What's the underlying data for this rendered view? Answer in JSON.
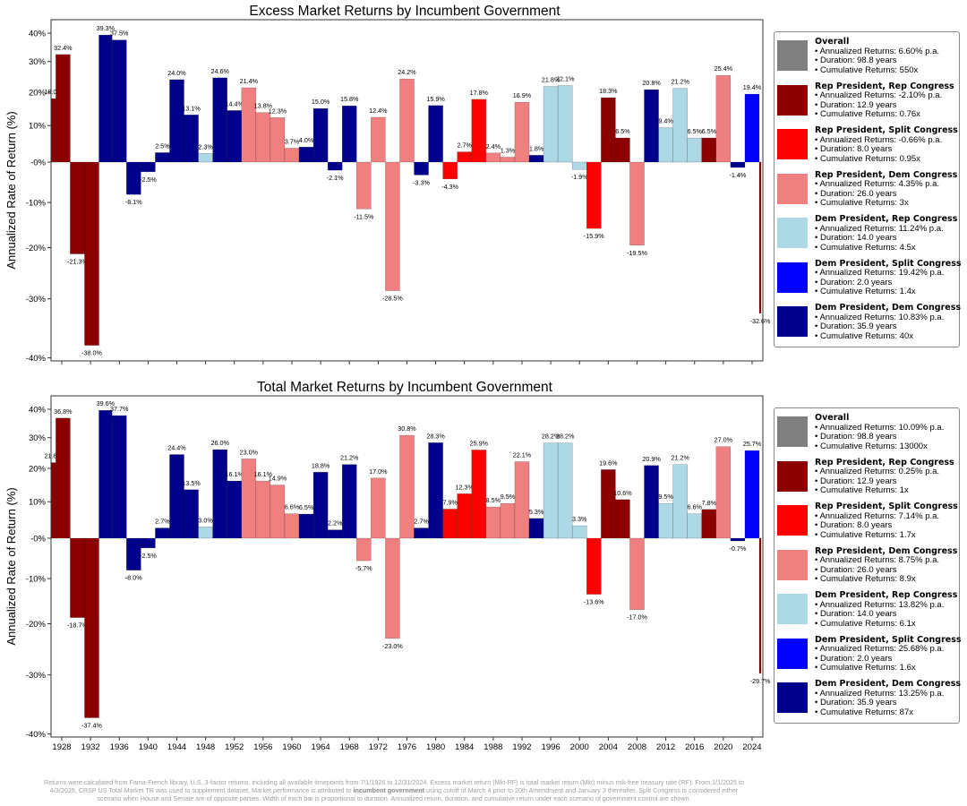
{
  "colors": {
    "overall": "#808080",
    "RR": "#8b0000",
    "RS": "#ff0000",
    "RD": "#f08080",
    "DR": "#add8e6",
    "DS": "#0000ff",
    "DD": "#00008b"
  },
  "chart_data": [
    {
      "type": "bar",
      "title": "Excess Market Returns by Incumbent Government",
      "xlabel": "",
      "ylabel": "Annualized Rate of Return (%)",
      "y_scale": "log(1+r)",
      "ylim": [
        -40,
        45
      ],
      "y_ticks": [
        "40%",
        "30%",
        "20%",
        "10%",
        "-0%",
        "-10%",
        "-20%",
        "-30%",
        "-40%"
      ],
      "y_tick_values": [
        40,
        30,
        20,
        10,
        0,
        -10,
        -20,
        -30,
        -40
      ],
      "x_ticks_shown": false,
      "period_boundaries": [
        1926.5,
        1927.17,
        1929.17,
        1931.17,
        1933.17,
        1935,
        1937,
        1939,
        1941,
        1943,
        1945,
        1947,
        1949,
        1951,
        1953,
        1955,
        1957,
        1959,
        1961,
        1963,
        1965,
        1967,
        1969,
        1971,
        1973,
        1975,
        1977,
        1979,
        1981,
        1983,
        1985,
        1987,
        1989,
        1991,
        1993,
        1995,
        1997,
        1999,
        2001,
        2003,
        2005,
        2007,
        2009,
        2011,
        2013,
        2015,
        2017,
        2019,
        2021,
        2023,
        2025,
        2025.25
      ],
      "groups": [
        "RR",
        "RR",
        "RR",
        "RR",
        "DD",
        "DD",
        "DD",
        "DD",
        "DD",
        "DD",
        "DD",
        "DR",
        "DD",
        "DD",
        "RD",
        "RD",
        "RD",
        "RD",
        "DD",
        "DD",
        "DD",
        "DD",
        "RD",
        "RD",
        "RD",
        "RD",
        "DD",
        "DD",
        "RS",
        "RS",
        "RS",
        "RD",
        "RD",
        "RD",
        "DD",
        "DR",
        "DR",
        "DR",
        "RS",
        "RR",
        "RR",
        "RD",
        "DD",
        "DR",
        "DR",
        "DR",
        "RR",
        "RD",
        "DD",
        "DS",
        "RR"
      ],
      "values": [
        18.0,
        32.4,
        -21.3,
        -38.0,
        39.3,
        37.5,
        -8.1,
        -2.5,
        2.5,
        24.0,
        13.1,
        2.3,
        24.6,
        14.4,
        21.4,
        13.8,
        12.3,
        3.7,
        4.0,
        15.0,
        -2.1,
        15.8,
        -11.5,
        12.4,
        -28.5,
        24.2,
        -3.3,
        15.9,
        -4.3,
        2.7,
        17.8,
        2.4,
        1.3,
        16.9,
        1.8,
        21.8,
        22.1,
        -1.9,
        -15.9,
        18.3,
        6.5,
        -19.5,
        20.8,
        9.4,
        21.2,
        6.5,
        6.5,
        25.4,
        -1.4,
        19.4,
        -32.6
      ],
      "legend_placement": "right",
      "legend": [
        {
          "group": "overall",
          "title": "Overall",
          "lines": [
            "• Annualized Returns: 6.60% p.a.",
            "• Duration: 98.8 years",
            "• Cumulative Returns: 550x"
          ]
        },
        {
          "group": "RR",
          "title": "Rep President,  Rep Congress",
          "lines": [
            "• Annualized Returns: -2.10% p.a.",
            "• Duration: 12.9 years",
            "• Cumulative Returns: 0.76x"
          ]
        },
        {
          "group": "RS",
          "title": "Rep President,  Split Congress",
          "lines": [
            "• Annualized Returns: -0.66% p.a.",
            "• Duration: 8.0 years",
            "• Cumulative Returns: 0.95x"
          ]
        },
        {
          "group": "RD",
          "title": "Rep President,  Dem Congress",
          "lines": [
            "• Annualized Returns: 4.35% p.a.",
            "• Duration: 26.0 years",
            "• Cumulative Returns: 3x"
          ]
        },
        {
          "group": "DR",
          "title": "Dem President,  Rep Congress",
          "lines": [
            "• Annualized Returns: 11.24% p.a.",
            "• Duration: 14.0 years",
            "• Cumulative Returns: 4.5x"
          ]
        },
        {
          "group": "DS",
          "title": "Dem President,  Split Congress",
          "lines": [
            "• Annualized Returns: 19.42% p.a.",
            "• Duration: 2.0 years",
            "• Cumulative Returns: 1.4x"
          ]
        },
        {
          "group": "DD",
          "title": "Dem President,  Dem Congress",
          "lines": [
            "• Annualized Returns: 10.83% p.a.",
            "• Duration: 35.9 years",
            "• Cumulative Returns: 40x"
          ]
        }
      ]
    },
    {
      "type": "bar",
      "title": "Total Market Returns by Incumbent Government",
      "xlabel": "",
      "ylabel": "Annualized Rate of Return (%)",
      "y_scale": "log(1+r)",
      "ylim": [
        -40,
        45
      ],
      "y_ticks": [
        "40%",
        "30%",
        "20%",
        "10%",
        "-0%",
        "-10%",
        "-20%",
        "-30%",
        "-40%"
      ],
      "y_tick_values": [
        40,
        30,
        20,
        10,
        0,
        -10,
        -20,
        -30,
        -40
      ],
      "x_ticks_shown": true,
      "x_ticks": [
        "1928",
        "1932",
        "1936",
        "1940",
        "1944",
        "1948",
        "1952",
        "1956",
        "1960",
        "1964",
        "1968",
        "1972",
        "1976",
        "1980",
        "1984",
        "1988",
        "1992",
        "1996",
        "2000",
        "2004",
        "2008",
        "2012",
        "2016",
        "2020",
        "2024"
      ],
      "period_boundaries": [
        1926.5,
        1927.17,
        1929.17,
        1931.17,
        1933.17,
        1935,
        1937,
        1939,
        1941,
        1943,
        1945,
        1947,
        1949,
        1951,
        1953,
        1955,
        1957,
        1959,
        1961,
        1963,
        1965,
        1967,
        1969,
        1971,
        1973,
        1975,
        1977,
        1979,
        1981,
        1983,
        1985,
        1987,
        1989,
        1991,
        1993,
        1995,
        1997,
        1999,
        2001,
        2003,
        2005,
        2007,
        2009,
        2011,
        2013,
        2015,
        2017,
        2019,
        2021,
        2023,
        2025,
        2025.25
      ],
      "groups": [
        "RR",
        "RR",
        "RR",
        "RR",
        "DD",
        "DD",
        "DD",
        "DD",
        "DD",
        "DD",
        "DD",
        "DR",
        "DD",
        "DD",
        "RD",
        "RD",
        "RD",
        "RD",
        "DD",
        "DD",
        "DD",
        "DD",
        "RD",
        "RD",
        "RD",
        "RD",
        "DD",
        "DD",
        "RS",
        "RS",
        "RS",
        "RD",
        "RD",
        "RD",
        "DD",
        "DR",
        "DR",
        "DR",
        "RS",
        "RR",
        "RR",
        "RD",
        "DD",
        "DR",
        "DR",
        "DR",
        "RR",
        "RD",
        "DD",
        "DS",
        "RR"
      ],
      "values": [
        21.8,
        36.8,
        -18.7,
        -37.4,
        39.6,
        37.7,
        -8.0,
        -2.5,
        2.7,
        24.4,
        13.5,
        3.0,
        26.0,
        16.1,
        23.0,
        16.1,
        14.9,
        6.6,
        6.5,
        18.8,
        2.2,
        21.2,
        -5.7,
        17.0,
        -23.0,
        30.8,
        2.7,
        28.3,
        7.9,
        12.3,
        25.9,
        8.5,
        9.5,
        22.1,
        5.3,
        28.2,
        28.2,
        3.3,
        -13.6,
        19.6,
        10.6,
        -17.0,
        20.9,
        9.5,
        21.2,
        6.6,
        7.8,
        27.0,
        -0.7,
        25.7,
        -29.7
      ],
      "legend_placement": "right",
      "legend": [
        {
          "group": "overall",
          "title": "Overall",
          "lines": [
            "• Annualized Returns: 10.09% p.a.",
            "• Duration: 98.8 years",
            "• Cumulative Returns: 13000x"
          ]
        },
        {
          "group": "RR",
          "title": "Rep President,  Rep Congress",
          "lines": [
            "• Annualized Returns: 0.25% p.a.",
            "• Duration: 12.9 years",
            "• Cumulative Returns: 1x"
          ]
        },
        {
          "group": "RS",
          "title": "Rep President,  Split Congress",
          "lines": [
            "• Annualized Returns: 7.14% p.a.",
            "• Duration: 8.0 years",
            "• Cumulative Returns: 1.7x"
          ]
        },
        {
          "group": "RD",
          "title": "Rep President,  Dem Congress",
          "lines": [
            "• Annualized Returns: 8.75% p.a.",
            "• Duration: 26.0 years",
            "• Cumulative Returns: 8.9x"
          ]
        },
        {
          "group": "DR",
          "title": "Dem President,  Rep Congress",
          "lines": [
            "• Annualized Returns: 13.82% p.a.",
            "• Duration: 14.0 years",
            "• Cumulative Returns: 6.1x"
          ]
        },
        {
          "group": "DS",
          "title": "Dem President,  Split Congress",
          "lines": [
            "• Annualized Returns: 25.68% p.a.",
            "• Duration: 2.0 years",
            "• Cumulative Returns: 1.6x"
          ]
        },
        {
          "group": "DD",
          "title": "Dem President,  Dem Congress",
          "lines": [
            "• Annualized Returns: 13.25% p.a.",
            "• Duration: 35.9 years",
            "• Cumulative Returns: 87x"
          ]
        }
      ]
    }
  ],
  "footer": {
    "line1": "Returns were calculated from Fama-French library, U.S. 3-factor returns, including all available timepoints from 7/1/1926 to 12/31/2024. Excess market return (Mkt-RF) is total market return (Mkt) minus risk-free treasury rate (RF). From 1/1/2025 to",
    "line2a": "4/3/2025, CRSP US Total Market TR was used to supplement dataset.  Market performance is attributed to ",
    "line2b": "incumbent government",
    "line2c": " using cutoff of March 4 prior to 20th Amendment and January 3 thereafter. Split Congress is considered either",
    "line3": "scenario when House and Senate are of opposite parties. Width of each bar is proportional to duration. Annualized return, duration, and cumulative return under each scenario of government control are shown."
  }
}
